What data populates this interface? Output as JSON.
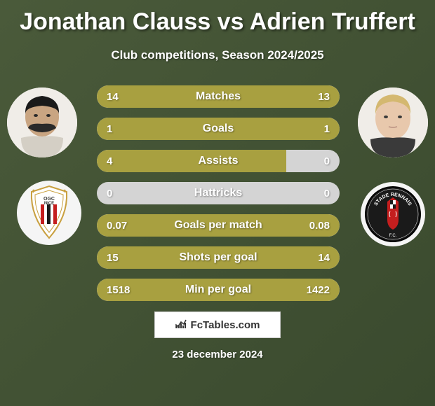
{
  "title": "Jonathan Clauss vs Adrien Truffert",
  "subtitle": "Club competitions, Season 2024/2025",
  "date": "23 december 2024",
  "logo_text": "FcTables.com",
  "colors": {
    "bar_fill": "#a8a040",
    "bar_bg": "#d4d4d4",
    "text": "#ffffff",
    "background_start": "#4a5a3a",
    "background_end": "#3a4a2e"
  },
  "players": {
    "left": {
      "name": "Jonathan Clauss",
      "club": "OGC Nice"
    },
    "right": {
      "name": "Adrien Truffert",
      "club": "Stade Rennais"
    }
  },
  "stats": [
    {
      "label": "Matches",
      "left_val": "14",
      "right_val": "13",
      "left_pct": 52,
      "right_pct": 48,
      "full": true
    },
    {
      "label": "Goals",
      "left_val": "1",
      "right_val": "1",
      "left_pct": 50,
      "right_pct": 50,
      "full": true
    },
    {
      "label": "Assists",
      "left_val": "4",
      "right_val": "0",
      "left_pct": 78,
      "right_pct": 0,
      "full": false
    },
    {
      "label": "Hattricks",
      "left_val": "0",
      "right_val": "0",
      "left_pct": 0,
      "right_pct": 0,
      "full": false
    },
    {
      "label": "Goals per match",
      "left_val": "0.07",
      "right_val": "0.08",
      "left_pct": 47,
      "right_pct": 53,
      "full": true
    },
    {
      "label": "Shots per goal",
      "left_val": "15",
      "right_val": "14",
      "left_pct": 52,
      "right_pct": 48,
      "full": true
    },
    {
      "label": "Min per goal",
      "left_val": "1518",
      "right_val": "1422",
      "left_pct": 52,
      "right_pct": 48,
      "full": true
    }
  ]
}
